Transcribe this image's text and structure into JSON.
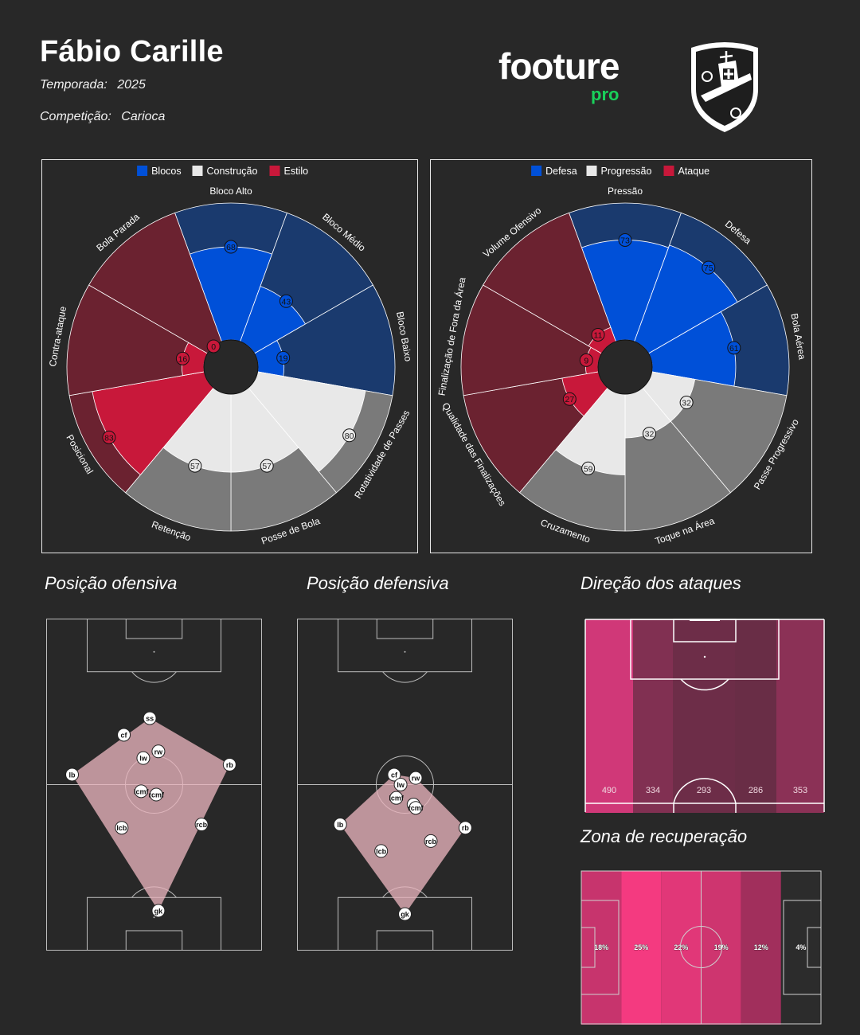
{
  "header": {
    "coach_name": "Fábio Carille",
    "season_label": "Temporada:",
    "season_value": "2025",
    "competition_label": "Competição:",
    "competition_value": "Carioca",
    "logo_main": "footure",
    "logo_sub": "pro"
  },
  "colors": {
    "background": "#282828",
    "blue_bright": "#0050d8",
    "blue_dark": "#1a3a6e",
    "light": "#e8e8e8",
    "grey_dark": "#7a7a7a",
    "red_bright": "#c8183a",
    "red_dark": "#6b2230",
    "accent_green": "#19d15a"
  },
  "chart_data": [
    {
      "type": "polar-bar",
      "legend": [
        {
          "label": "Blocos",
          "color": "#0050d8"
        },
        {
          "label": "Construção",
          "color": "#e8e8e8"
        },
        {
          "label": "Estilo",
          "color": "#c8183a"
        }
      ],
      "categories": [
        "Bloco Alto",
        "Bloco Médio",
        "Bloco Baixo",
        "Rotatividade de Passes",
        "Posse de Bola",
        "Retenção",
        "Posicional",
        "Contra-ataque",
        "Bola Parada"
      ],
      "groups": [
        "Blocos",
        "Blocos",
        "Blocos",
        "Construção",
        "Construção",
        "Construção",
        "Estilo",
        "Estilo",
        "Estilo"
      ],
      "values": [
        68,
        43,
        19,
        80,
        57,
        57,
        83,
        16,
        0
      ],
      "ylim": [
        0,
        100
      ]
    },
    {
      "type": "polar-bar",
      "legend": [
        {
          "label": "Defesa",
          "color": "#0050d8"
        },
        {
          "label": "Progressão",
          "color": "#e8e8e8"
        },
        {
          "label": "Ataque",
          "color": "#c8183a"
        }
      ],
      "categories": [
        "Pressão",
        "Defesa",
        "Bola Aérea",
        "Passe Progressivo",
        "Toque na Área",
        "Cruzamento",
        "Qualidade das Finalizações",
        "Finalização de Fora da Área",
        "Volume Ofensivo"
      ],
      "groups": [
        "Defesa",
        "Defesa",
        "Defesa",
        "Progressão",
        "Progressão",
        "Progressão",
        "Ataque",
        "Ataque",
        "Ataque"
      ],
      "values": [
        73,
        75,
        61,
        32,
        32,
        59,
        27,
        9,
        11
      ],
      "ylim": [
        0,
        100
      ]
    },
    {
      "type": "scatter",
      "title": "Posição ofensiva",
      "points": [
        {
          "label": "ss",
          "x": 48,
          "y": 70
        },
        {
          "label": "cf",
          "x": 36,
          "y": 65
        },
        {
          "label": "rw",
          "x": 52,
          "y": 60
        },
        {
          "label": "lw",
          "x": 45,
          "y": 58
        },
        {
          "label": "lb",
          "x": 12,
          "y": 53
        },
        {
          "label": "rb",
          "x": 85,
          "y": 56
        },
        {
          "label": "lcmf",
          "x": 44,
          "y": 48
        },
        {
          "label": "rcmf",
          "x": 51,
          "y": 47
        },
        {
          "label": "lcb",
          "x": 35,
          "y": 37
        },
        {
          "label": "rcb",
          "x": 72,
          "y": 38
        },
        {
          "label": "gk",
          "x": 52,
          "y": 12
        }
      ],
      "hull": [
        "ss",
        "rb",
        "gk",
        "lb"
      ]
    },
    {
      "type": "scatter",
      "title": "Posição defensiva",
      "points": [
        {
          "label": "cf",
          "x": 45,
          "y": 53
        },
        {
          "label": "rw",
          "x": 55,
          "y": 52
        },
        {
          "label": "lw",
          "x": 48,
          "y": 50
        },
        {
          "label": "lcmf",
          "x": 46,
          "y": 46
        },
        {
          "label": "ss",
          "x": 54,
          "y": 44
        },
        {
          "label": "rcmf",
          "x": 55,
          "y": 43
        },
        {
          "label": "lb",
          "x": 20,
          "y": 38
        },
        {
          "label": "rb",
          "x": 78,
          "y": 37
        },
        {
          "label": "rcb",
          "x": 62,
          "y": 33
        },
        {
          "label": "lcb",
          "x": 39,
          "y": 30
        },
        {
          "label": "gk",
          "x": 50,
          "y": 11
        }
      ],
      "hull": [
        "cf",
        "rw",
        "rb",
        "gk",
        "lb"
      ]
    },
    {
      "type": "heatmap",
      "title": "Direção dos ataques",
      "values": [
        490,
        334,
        293,
        286,
        353
      ]
    },
    {
      "type": "heatmap",
      "title": "Zona de recuperação",
      "values": [
        "18%",
        "25%",
        "22%",
        "19%",
        "12%",
        "4%"
      ],
      "shares": [
        18,
        25,
        22,
        19,
        12,
        4
      ]
    }
  ]
}
